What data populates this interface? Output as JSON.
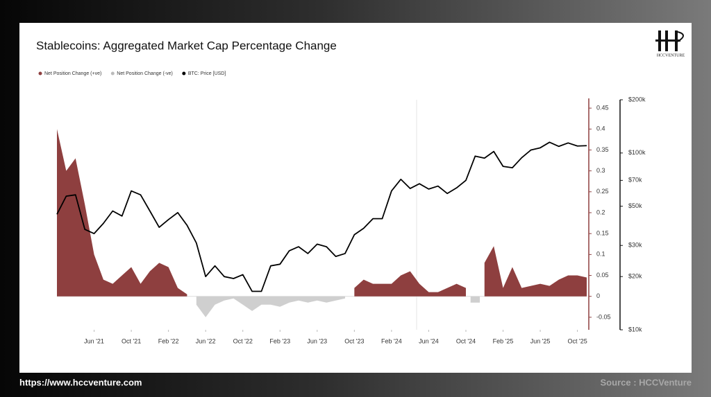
{
  "chart_data": {
    "type": "area_line",
    "title": "Stablecoins: Aggregated Market Cap Percentage Change",
    "x": [
      "2021-02",
      "2021-03",
      "2021-04",
      "2021-05",
      "2021-06",
      "2021-07",
      "2021-08",
      "2021-09",
      "2021-10",
      "2021-11",
      "2021-12",
      "2022-01",
      "2022-02",
      "2022-03",
      "2022-04",
      "2022-05",
      "2022-06",
      "2022-07",
      "2022-08",
      "2022-09",
      "2022-10",
      "2022-11",
      "2022-12",
      "2023-01",
      "2023-02",
      "2023-03",
      "2023-04",
      "2023-05",
      "2023-06",
      "2023-07",
      "2023-08",
      "2023-09",
      "2023-10",
      "2023-11",
      "2023-12",
      "2024-01",
      "2024-02",
      "2024-03",
      "2024-04",
      "2024-05",
      "2024-06",
      "2024-07",
      "2024-08",
      "2024-09",
      "2024-10",
      "2024-11",
      "2024-12",
      "2025-01",
      "2025-02",
      "2025-03",
      "2025-04",
      "2025-05",
      "2025-06",
      "2025-07",
      "2025-08",
      "2025-09",
      "2025-10",
      "2025-11"
    ],
    "xlim": [
      "2021-02",
      "2025-11"
    ],
    "xticks": [
      {
        "value": "2021-06",
        "label": "Jun '21"
      },
      {
        "value": "2021-10",
        "label": "Oct '21"
      },
      {
        "value": "2022-02",
        "label": "Feb '22"
      },
      {
        "value": "2022-06",
        "label": "Jun '22"
      },
      {
        "value": "2022-10",
        "label": "Oct '22"
      },
      {
        "value": "2023-02",
        "label": "Feb '23"
      },
      {
        "value": "2023-06",
        "label": "Jun '23"
      },
      {
        "value": "2023-10",
        "label": "Oct '23"
      },
      {
        "value": "2024-02",
        "label": "Feb '24"
      },
      {
        "value": "2024-06",
        "label": "Jun '24"
      },
      {
        "value": "2024-10",
        "label": "Oct '24"
      },
      {
        "value": "2025-02",
        "label": "Feb '25"
      },
      {
        "value": "2025-06",
        "label": "Jun '25"
      },
      {
        "value": "2025-10",
        "label": "Oct '25"
      }
    ],
    "ylim": [
      -0.08,
      0.47
    ],
    "yticks": [
      -0.05,
      0,
      0.05,
      0.1,
      0.15,
      0.2,
      0.25,
      0.3,
      0.35,
      0.4,
      0.45
    ],
    "y2lim": [
      10000,
      200000
    ],
    "y2log": true,
    "y2ticks": [
      {
        "value": 10000,
        "label": "$10k"
      },
      {
        "value": 20000,
        "label": "$20k"
      },
      {
        "value": 30000,
        "label": "$30k"
      },
      {
        "value": 50000,
        "label": "$50k"
      },
      {
        "value": 70000,
        "label": "$70k"
      },
      {
        "value": 100000,
        "label": "$100k"
      },
      {
        "value": 200000,
        "label": "$200k"
      }
    ],
    "series": [
      {
        "name": "Net Position Change (+ve)",
        "color": "#8e3f3f",
        "kind": "area",
        "values": [
          0.4,
          0.3,
          0.33,
          0.22,
          0.1,
          0.04,
          0.03,
          0.05,
          0.07,
          0.03,
          0.06,
          0.08,
          0.07,
          0.02,
          0.005,
          null,
          null,
          null,
          null,
          null,
          null,
          null,
          null,
          null,
          null,
          null,
          null,
          null,
          null,
          null,
          null,
          null,
          0.02,
          0.04,
          0.03,
          0.03,
          0.03,
          0.05,
          0.06,
          0.03,
          0.01,
          0.01,
          0.02,
          0.03,
          0.02,
          null,
          0.08,
          0.12,
          0.02,
          0.07,
          0.02,
          0.025,
          0.03,
          0.025,
          0.04,
          0.05,
          0.05,
          0.045
        ]
      },
      {
        "name": "Net Position Change (-ve)",
        "color": "#cfcfcf",
        "kind": "area",
        "values": [
          null,
          null,
          null,
          null,
          null,
          null,
          null,
          null,
          null,
          null,
          null,
          null,
          null,
          null,
          null,
          -0.02,
          -0.05,
          -0.02,
          -0.01,
          -0.005,
          -0.02,
          -0.035,
          -0.02,
          -0.02,
          -0.025,
          -0.015,
          -0.01,
          -0.015,
          -0.01,
          -0.015,
          -0.01,
          -0.005,
          null,
          null,
          null,
          null,
          null,
          null,
          null,
          null,
          null,
          null,
          null,
          null,
          null,
          -0.015,
          null,
          null,
          null,
          null,
          null,
          null,
          null,
          null,
          null,
          null,
          null,
          null
        ]
      },
      {
        "name": "BTC: Price [USD]",
        "color": "#000000",
        "kind": "line",
        "axis": "y2",
        "values": [
          45000,
          57000,
          58000,
          37000,
          35000,
          40000,
          47000,
          44000,
          61000,
          58000,
          47000,
          38000,
          42000,
          46000,
          39000,
          31000,
          20000,
          23000,
          20000,
          19500,
          20500,
          16500,
          16500,
          23000,
          23500,
          28000,
          29500,
          27000,
          30500,
          29500,
          26000,
          27000,
          34500,
          37500,
          42500,
          42500,
          61000,
          71000,
          63000,
          67000,
          62500,
          65000,
          59000,
          63500,
          70000,
          96000,
          93500,
          102000,
          84000,
          82500,
          94000,
          104000,
          107000,
          115000,
          109000,
          114000,
          109500,
          110000
        ]
      }
    ]
  },
  "logo": "HCCVENTURE",
  "footer": {
    "url": "https://www.hccventure.com",
    "source": "Source : HCCVenture"
  }
}
